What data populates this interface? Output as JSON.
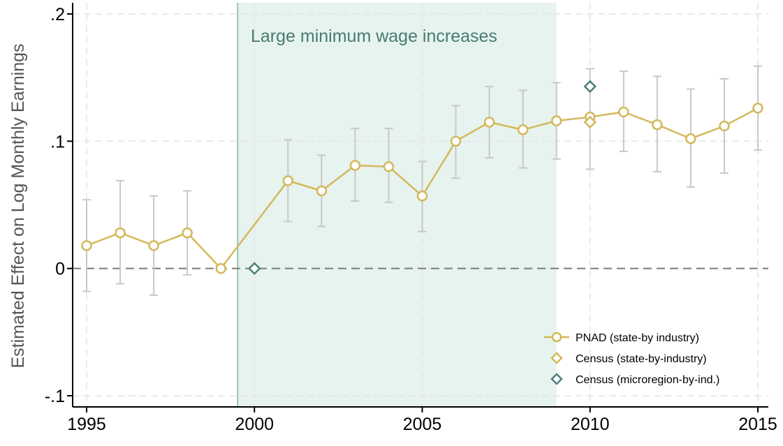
{
  "chart_data": {
    "type": "line",
    "ylabel": "Estimated Effect on Log Monthly Earnings",
    "xlim": [
      1995,
      2015
    ],
    "ylim": [
      -0.1,
      0.2
    ],
    "x_ticks": [
      1995,
      2000,
      2005,
      2010,
      2015
    ],
    "y_ticks": [
      {
        "value": -0.1,
        "label": "-.1"
      },
      {
        "value": 0,
        "label": "0"
      },
      {
        "value": 0.1,
        "label": ".1"
      },
      {
        "value": 0.2,
        "label": ".2"
      }
    ],
    "grid": true,
    "reference_line": {
      "y": 0,
      "style": "dashed"
    },
    "shaded_region": {
      "x_start": 1999.5,
      "x_end": 2009,
      "label": "Large minimum wage increases",
      "color": "#e6f3ee",
      "edge_color": "#9cc4b2",
      "label_color": "#4a7a72"
    },
    "legend": {
      "placement": "bottom-right"
    },
    "series": [
      {
        "name": "PNAD (state-by industry)",
        "marker": "circle",
        "color": "#d4b85a",
        "connected": true,
        "x": [
          1995,
          1996,
          1997,
          1998,
          1999,
          2001,
          2002,
          2003,
          2004,
          2005,
          2006,
          2007,
          2008,
          2009,
          2010,
          2011,
          2012,
          2013,
          2014,
          2015
        ],
        "y": [
          0.018,
          0.028,
          0.018,
          0.028,
          0.0,
          0.069,
          0.061,
          0.081,
          0.08,
          0.057,
          0.1,
          0.115,
          0.109,
          0.116,
          0.119,
          0.123,
          0.113,
          0.102,
          0.112,
          0.126
        ],
        "ci_low": [
          -0.018,
          -0.012,
          -0.021,
          -0.005,
          null,
          0.037,
          0.033,
          0.053,
          0.052,
          0.029,
          0.071,
          0.087,
          0.079,
          0.086,
          0.078,
          0.092,
          0.076,
          0.064,
          0.075,
          0.093
        ],
        "ci_high": [
          0.054,
          0.069,
          0.057,
          0.061,
          null,
          0.101,
          0.089,
          0.11,
          0.11,
          0.084,
          0.128,
          0.143,
          0.14,
          0.146,
          0.157,
          0.155,
          0.151,
          0.141,
          0.149,
          0.159
        ]
      },
      {
        "name": "Census (state-by-industry)",
        "marker": "diamond",
        "color": "#d4b85a",
        "connected": false,
        "x": [
          2000,
          2010
        ],
        "y": [
          0.0,
          0.115
        ]
      },
      {
        "name": "Census (microregion-by-ind.)",
        "marker": "diamond",
        "color": "#4e7f7a",
        "connected": false,
        "x": [
          2000,
          2010
        ],
        "y": [
          0.0,
          0.143
        ]
      }
    ],
    "colors": {
      "ci_bars": "#c8c8c8",
      "grid": "#e4e4e4",
      "zero_line": "#7a7a7a",
      "axis": "#000000"
    }
  }
}
